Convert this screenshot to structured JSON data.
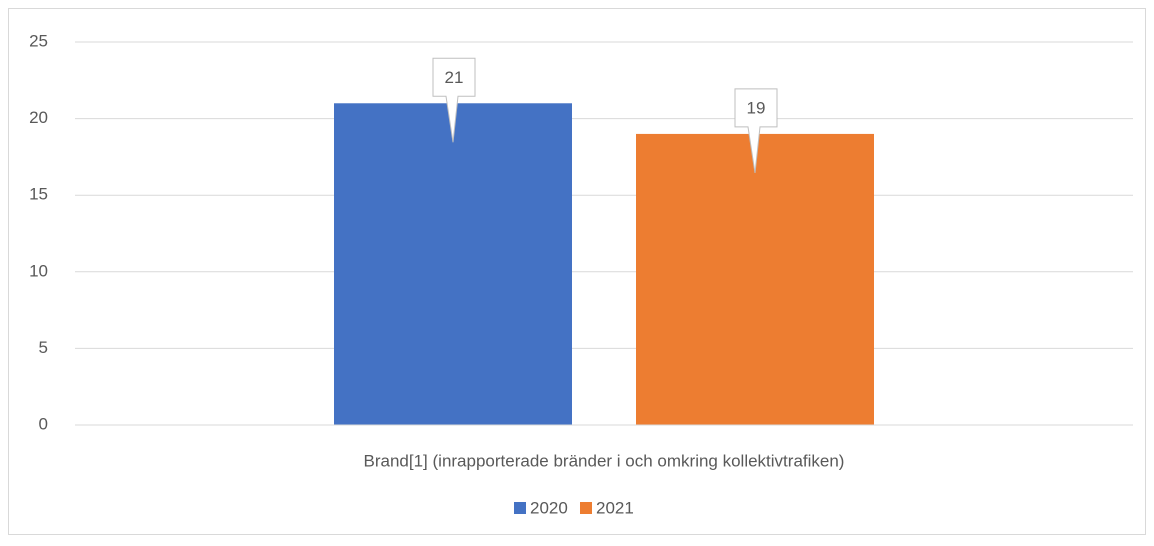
{
  "chart_data": {
    "type": "bar",
    "categories": [
      "Brand[1] (inrapporterade bränder i och omkring kollektivtrafiken)"
    ],
    "series": [
      {
        "name": "2020",
        "color": "#4472c4",
        "values": [
          21
        ]
      },
      {
        "name": "2021",
        "color": "#ed7d31",
        "values": [
          19
        ]
      }
    ],
    "ylim": [
      0,
      25
    ],
    "yticks": [
      0,
      5,
      10,
      15,
      20,
      25
    ],
    "grid": true,
    "legend": "bottom"
  }
}
